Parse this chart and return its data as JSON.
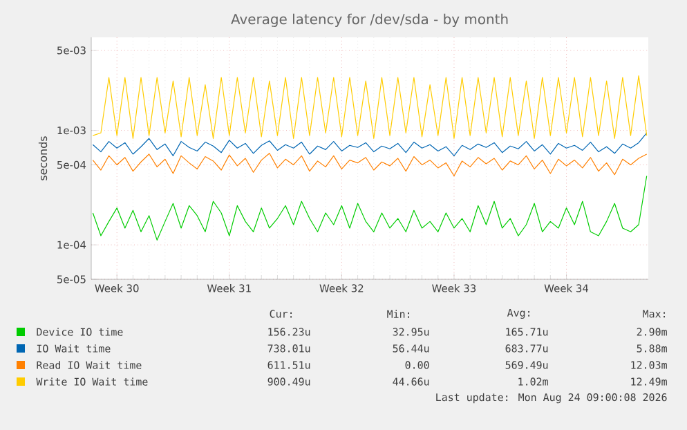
{
  "chart_data": {
    "type": "line",
    "title": "Average latency for /dev/sda - by month",
    "ylabel": "seconds",
    "log": "y",
    "grid": true,
    "legend": "bottom",
    "marker": "none",
    "line_style": "solid",
    "ylim": [
      5e-05,
      0.0065
    ],
    "yticks": [
      {
        "value": 5e-05,
        "label": "5e-05"
      },
      {
        "value": 0.0001,
        "label": "1e-04"
      },
      {
        "value": 0.0005,
        "label": "5e-04"
      },
      {
        "value": 0.001,
        "label": "1e-03"
      },
      {
        "value": 0.005,
        "label": "5e-03"
      }
    ],
    "categories": [
      null,
      null,
      null,
      "Week 30",
      null,
      null,
      null,
      null,
      null,
      null,
      null,
      null,
      null,
      null,
      null,
      null,
      null,
      "Week 31",
      null,
      null,
      null,
      null,
      null,
      null,
      null,
      null,
      null,
      null,
      null,
      null,
      null,
      "Week 32",
      null,
      null,
      null,
      null,
      null,
      null,
      null,
      null,
      null,
      null,
      null,
      null,
      null,
      "Week 33",
      null,
      null,
      null,
      null,
      null,
      null,
      null,
      null,
      null,
      null,
      null,
      null,
      null,
      "Week 34",
      null,
      null,
      null,
      null,
      null,
      null,
      null,
      null,
      null,
      null
    ],
    "series": [
      {
        "name": "Device IO time",
        "color": "#00cc00",
        "values": [
          0.00019,
          0.00012,
          0.00016,
          0.00021,
          0.00014,
          0.0002,
          0.00013,
          0.00018,
          0.00011,
          0.00016,
          0.00023,
          0.00014,
          0.00022,
          0.00018,
          0.00013,
          0.00024,
          0.00019,
          0.00012,
          0.00022,
          0.00016,
          0.00013,
          0.00021,
          0.00014,
          0.00017,
          0.00022,
          0.00015,
          0.00024,
          0.00017,
          0.00013,
          0.00019,
          0.00015,
          0.00022,
          0.00014,
          0.00023,
          0.00016,
          0.00013,
          0.00019,
          0.00014,
          0.00017,
          0.00013,
          0.0002,
          0.00014,
          0.00016,
          0.00013,
          0.00019,
          0.00014,
          0.00017,
          0.00013,
          0.00022,
          0.00015,
          0.00024,
          0.00014,
          0.00017,
          0.00012,
          0.00015,
          0.00023,
          0.00013,
          0.00016,
          0.00014,
          0.00021,
          0.00015,
          0.00024,
          0.00013,
          0.00012,
          0.00016,
          0.00023,
          0.00014,
          0.00013,
          0.00015,
          0.0004
        ]
      },
      {
        "name": "IO Wait time",
        "color": "#0066b3",
        "values": [
          0.00075,
          0.00065,
          0.0008,
          0.0007,
          0.00078,
          0.00062,
          0.00072,
          0.00085,
          0.00068,
          0.00076,
          0.0006,
          0.0008,
          0.00071,
          0.00066,
          0.00079,
          0.00073,
          0.00064,
          0.00082,
          0.0007,
          0.00077,
          0.00063,
          0.00074,
          0.00081,
          0.00067,
          0.00075,
          0.0007,
          0.00079,
          0.00062,
          0.00073,
          0.00068,
          0.0008,
          0.00066,
          0.00074,
          0.00071,
          0.00078,
          0.00065,
          0.00073,
          0.00069,
          0.00077,
          0.00064,
          0.00079,
          0.0007,
          0.00075,
          0.00066,
          0.00072,
          0.0006,
          0.00074,
          0.00068,
          0.00076,
          0.00071,
          0.00078,
          0.00064,
          0.00073,
          0.00069,
          0.0008,
          0.00066,
          0.00075,
          0.00062,
          0.00077,
          0.0007,
          0.00074,
          0.00067,
          0.00079,
          0.00065,
          0.00072,
          0.00063,
          0.00076,
          0.0007,
          0.00078,
          0.00095
        ]
      },
      {
        "name": "Read IO Wait time",
        "color": "#ff8000",
        "values": [
          0.00055,
          0.00045,
          0.0006,
          0.0005,
          0.00058,
          0.00044,
          0.00053,
          0.00062,
          0.00048,
          0.00056,
          0.00042,
          0.0006,
          0.00052,
          0.00046,
          0.00059,
          0.00054,
          0.00045,
          0.00061,
          0.00049,
          0.00057,
          0.00043,
          0.00055,
          0.00063,
          0.00047,
          0.00056,
          0.0005,
          0.0006,
          0.00044,
          0.00054,
          0.00048,
          0.0006,
          0.00046,
          0.00055,
          0.00052,
          0.00058,
          0.00045,
          0.00053,
          0.00049,
          0.00057,
          0.00044,
          0.00059,
          0.0005,
          0.00055,
          0.00047,
          0.00052,
          0.0004,
          0.00054,
          0.00048,
          0.00058,
          0.00051,
          0.00057,
          0.00045,
          0.00054,
          0.0005,
          0.0006,
          0.00046,
          0.00055,
          0.00042,
          0.00056,
          0.00049,
          0.00055,
          0.00047,
          0.00058,
          0.00044,
          0.00052,
          0.00041,
          0.00056,
          0.0005,
          0.00057,
          0.00062
        ]
      },
      {
        "name": "Write IO Wait time",
        "color": "#ffcc00",
        "values": [
          0.0009,
          0.00095,
          0.0029,
          0.0009,
          0.0029,
          0.00085,
          0.0029,
          0.0009,
          0.0029,
          0.00095,
          0.0027,
          0.00088,
          0.0029,
          0.0009,
          0.0025,
          0.00085,
          0.0029,
          0.0009,
          0.0029,
          0.00095,
          0.0029,
          0.00088,
          0.0027,
          0.0009,
          0.0029,
          0.00085,
          0.0029,
          0.0009,
          0.0029,
          0.00095,
          0.0029,
          0.00088,
          0.0029,
          0.0009,
          0.0027,
          0.00085,
          0.0029,
          0.0009,
          0.0029,
          0.00095,
          0.0029,
          0.00088,
          0.0025,
          0.0009,
          0.0029,
          0.00085,
          0.0029,
          0.0009,
          0.0029,
          0.00095,
          0.0029,
          0.00088,
          0.0029,
          0.0009,
          0.0027,
          0.00085,
          0.0029,
          0.0009,
          0.0029,
          0.00095,
          0.0029,
          0.00088,
          0.0029,
          0.0009,
          0.0027,
          0.00085,
          0.0029,
          0.0009,
          0.003,
          0.0009
        ]
      }
    ],
    "annotations": [
      "Cur:",
      "Min:",
      "Avg:",
      "Max:",
      "156.23u",
      "32.95u",
      "165.71u",
      "2.90m",
      "738.01u",
      "56.44u",
      "683.77u",
      "5.88m",
      "611.51u",
      "0.00",
      "569.49u",
      "12.03m",
      "900.49u",
      "44.66u",
      "1.02m",
      "12.49m",
      "Last update: Mon Aug 24 09:00:08 2026"
    ]
  }
}
